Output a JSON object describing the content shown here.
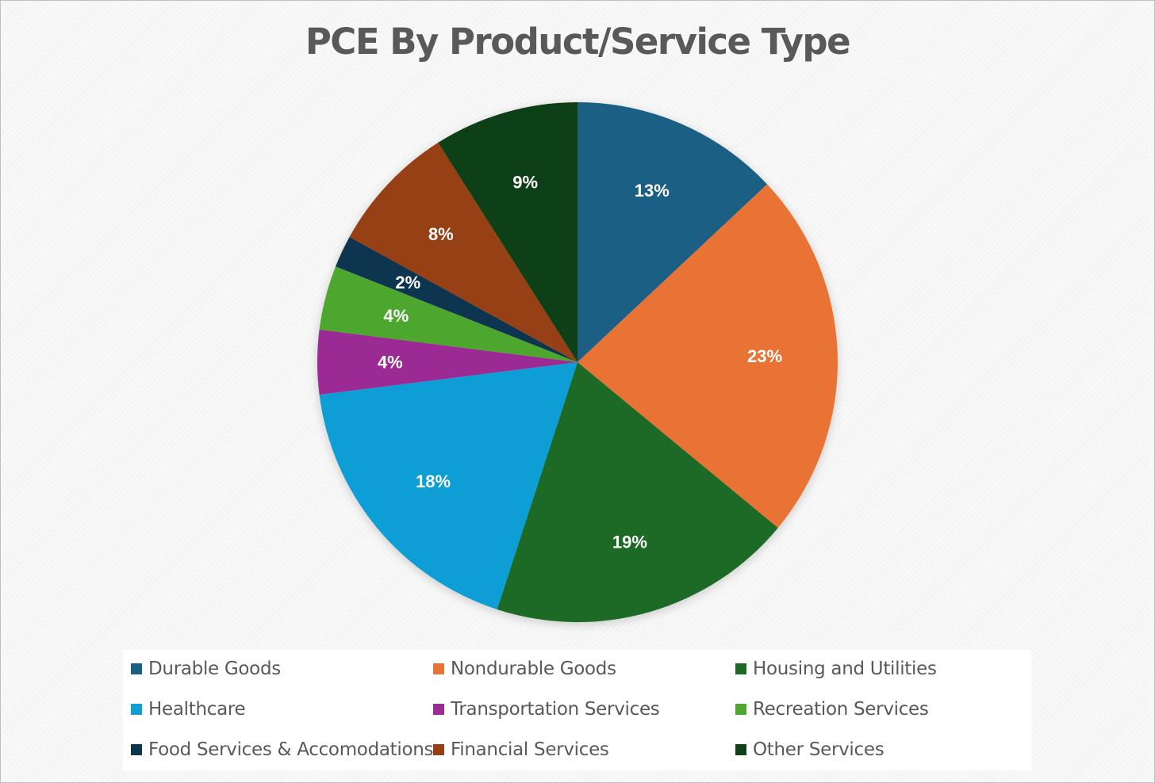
{
  "chart_data": {
    "type": "pie",
    "title": "PCE By Product/Service Type",
    "categories": [
      "Durable Goods",
      "Nondurable Goods",
      "Housing and Utilities",
      "Healthcare",
      "Transportation Services",
      "Recreation Services",
      "Food Services & Accomodations",
      "Financial Services",
      "Other Services"
    ],
    "values": [
      13,
      23,
      19,
      18,
      4,
      4,
      2,
      8,
      9
    ],
    "labels": [
      "13%",
      "23%",
      "19%",
      "18%",
      "4%",
      "4%",
      "2%",
      "8%",
      "9%"
    ],
    "colors": [
      "#1a5f85",
      "#e97335",
      "#1c6b25",
      "#109ed6",
      "#9c2b95",
      "#4ea72e",
      "#0e3550",
      "#973f12",
      "#113f18"
    ],
    "legend_position": "bottom"
  }
}
